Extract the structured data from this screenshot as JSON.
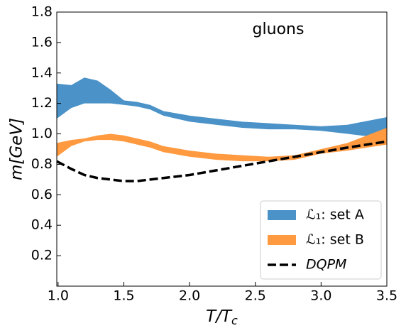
{
  "chart_data": {
    "type": "band",
    "annotation": "gluons",
    "x_label": {
      "main": "T/T",
      "sub": "c"
    },
    "y_label": "m[GeV]",
    "x": [
      0.99,
      1.1,
      1.2,
      1.3,
      1.4,
      1.5,
      1.6,
      1.7,
      1.8,
      2.0,
      2.2,
      2.4,
      2.6,
      2.8,
      3.0,
      3.2,
      3.5
    ],
    "series": [
      {
        "name": "ℒ₁: set A",
        "color": "#4a92c7",
        "style": "band",
        "upper": [
          1.33,
          1.32,
          1.37,
          1.35,
          1.29,
          1.22,
          1.21,
          1.19,
          1.15,
          1.12,
          1.1,
          1.08,
          1.07,
          1.06,
          1.05,
          1.06,
          1.11
        ],
        "lower": [
          1.1,
          1.17,
          1.2,
          1.2,
          1.2,
          1.19,
          1.18,
          1.16,
          1.12,
          1.08,
          1.06,
          1.04,
          1.03,
          1.03,
          1.02,
          1.0,
          0.97
        ]
      },
      {
        "name": "ℒ₁: set B",
        "color": "#ff9a40",
        "style": "band",
        "upper": [
          0.94,
          0.96,
          0.97,
          0.99,
          1.0,
          0.99,
          0.97,
          0.95,
          0.92,
          0.89,
          0.87,
          0.86,
          0.85,
          0.86,
          0.9,
          0.94,
          1.04
        ],
        "lower": [
          0.85,
          0.92,
          0.95,
          0.96,
          0.96,
          0.95,
          0.93,
          0.91,
          0.88,
          0.85,
          0.83,
          0.82,
          0.82,
          0.83,
          0.87,
          0.89,
          0.93
        ]
      },
      {
        "name": "DQPM",
        "color": "#000000",
        "style": "dashed",
        "values": [
          0.82,
          0.77,
          0.73,
          0.71,
          0.7,
          0.69,
          0.69,
          0.7,
          0.71,
          0.73,
          0.76,
          0.79,
          0.82,
          0.85,
          0.88,
          0.91,
          0.95
        ]
      }
    ],
    "xlim": [
      0.99,
      3.5
    ],
    "ylim": [
      0,
      1.8
    ],
    "xticks": [
      {
        "value": 1.0,
        "label": "1.0"
      },
      1.5,
      {
        "value": 2.0,
        "label": "2.0"
      },
      2.5,
      {
        "value": 3.0,
        "label": "3.0"
      },
      3.5
    ],
    "yticks": [
      0.2,
      0.4,
      0.6,
      0.8,
      {
        "value": 1.0,
        "label": "1.0"
      },
      1.2,
      1.4,
      1.6,
      1.8
    ],
    "legend": "lower right"
  }
}
